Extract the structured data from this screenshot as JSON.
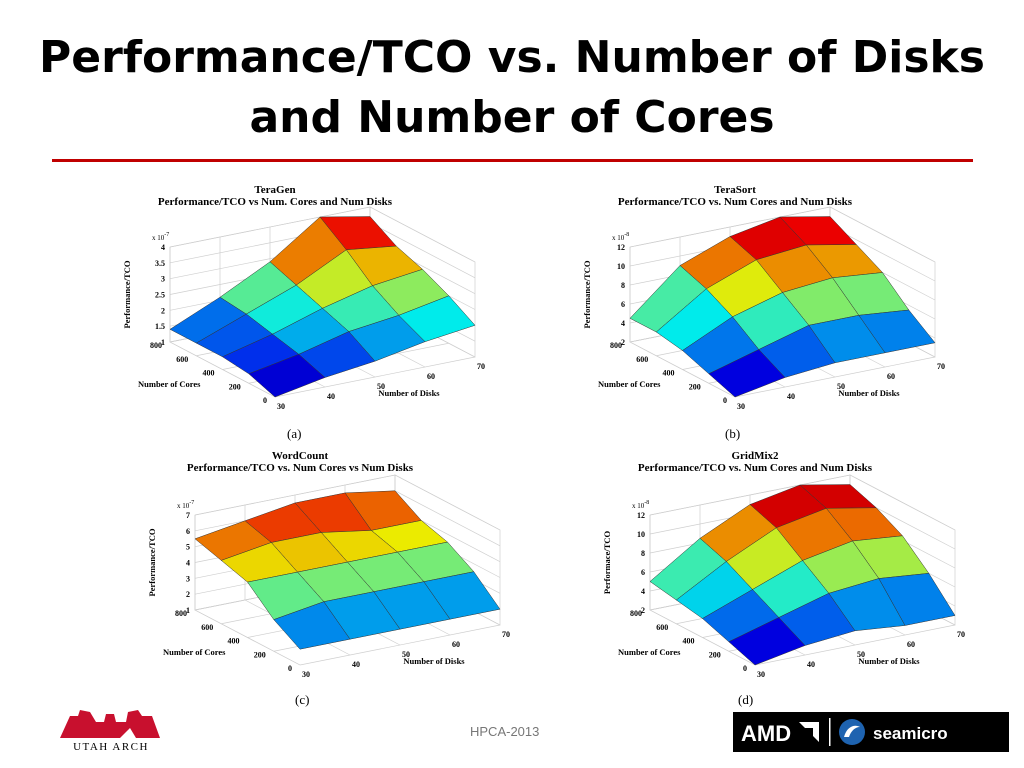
{
  "slide": {
    "title": "Performance/TCO vs. Number of Disks and Number of Cores",
    "footer": "HPCA-2013",
    "logo_left": "UTAH ARCH",
    "logo_right_amd": "AMD",
    "logo_right_seamicro": "seamicro"
  },
  "chart_data": [
    {
      "type": "surface3d",
      "subfigure": "(a)",
      "title": "TeraGen",
      "subtitle": "Performance/TCO vs Num. Cores and Num Disks",
      "xlabel": "Number of Disks",
      "ylabel": "Number of Cores",
      "zlabel": "Performance/TCO",
      "z_exponent": "x 10",
      "z_exponent_power": "-7",
      "x_ticks": [
        "30",
        "40",
        "50",
        "60",
        "70"
      ],
      "y_ticks": [
        "0",
        "200",
        "400",
        "600",
        "800"
      ],
      "z_ticks": [
        "1",
        "1.5",
        "2",
        "2.5",
        "3",
        "3.5",
        "4"
      ],
      "zlim": [
        1,
        4
      ],
      "x": [
        30,
        40,
        50,
        60,
        70
      ],
      "y": [
        0,
        200,
        400,
        600,
        800
      ],
      "z": [
        [
          1.0,
          1.3,
          1.5,
          1.8,
          2.0
        ],
        [
          1.3,
          1.6,
          2.0,
          2.2,
          2.5
        ],
        [
          1.4,
          1.8,
          2.3,
          2.7,
          2.9
        ],
        [
          1.4,
          2.0,
          2.6,
          3.4,
          3.2
        ],
        [
          1.4,
          2.1,
          2.9,
          4.0,
          3.7
        ]
      ]
    },
    {
      "type": "surface3d",
      "subfigure": "(b)",
      "title": "TeraSort",
      "subtitle": "Performance/TCO vs. Num Cores and Num Disks",
      "xlabel": "Number of Disks",
      "ylabel": "Number of Cores",
      "zlabel": "Performance/TCO",
      "z_exponent": "x 10",
      "z_exponent_power": "-8",
      "x_ticks": [
        "30",
        "40",
        "50",
        "60",
        "70"
      ],
      "y_ticks": [
        "0",
        "200",
        "400",
        "600",
        "800"
      ],
      "z_ticks": [
        "2",
        "4",
        "6",
        "8",
        "10",
        "12"
      ],
      "zlim": [
        2,
        12
      ],
      "x": [
        30,
        40,
        50,
        60,
        70
      ],
      "y": [
        0,
        200,
        400,
        600,
        800
      ],
      "z": [
        [
          2.0,
          3.0,
          3.5,
          3.5,
          3.5
        ],
        [
          3.0,
          4.5,
          6.0,
          6.0,
          5.5
        ],
        [
          4.0,
          6.5,
          8.0,
          8.5,
          8.0
        ],
        [
          4.5,
          8.0,
          10.0,
          10.5,
          9.5
        ],
        [
          4.5,
          9.0,
          11.0,
          12.0,
          11.0
        ]
      ]
    },
    {
      "type": "surface3d",
      "subfigure": "(c)",
      "title": "WordCount",
      "subtitle": "Performance/TCO vs. Num Cores vs Num Disks",
      "xlabel": "Number of Disks",
      "ylabel": "Number of Cores",
      "zlabel": "Performance/TCO",
      "z_exponent": "x 10",
      "z_exponent_power": "-7",
      "x_ticks": [
        "30",
        "40",
        "50",
        "60",
        "70"
      ],
      "y_ticks": [
        "0",
        "200",
        "400",
        "600",
        "800"
      ],
      "z_ticks": [
        "1",
        "2",
        "3",
        "4",
        "5",
        "6",
        "7"
      ],
      "zlim": [
        1,
        7
      ],
      "x": [
        30,
        40,
        50,
        60,
        70
      ],
      "y": [
        0,
        200,
        400,
        600,
        800
      ],
      "z": [
        [
          2.0,
          2.0,
          2.0,
          2.0,
          2.0
        ],
        [
          3.0,
          3.5,
          3.5,
          3.5,
          3.5
        ],
        [
          4.5,
          4.5,
          4.5,
          4.5,
          4.5
        ],
        [
          5.0,
          5.5,
          5.5,
          5.0,
          5.0
        ],
        [
          5.5,
          6.0,
          6.5,
          6.5,
          6.0
        ]
      ]
    },
    {
      "type": "surface3d",
      "subfigure": "(d)",
      "title": "GridMix2",
      "subtitle": "Performance/TCO vs. Num Cores and Num Disks",
      "xlabel": "Number of Disks",
      "ylabel": "Number of Cores",
      "zlabel": "Performace/TCO",
      "z_exponent": "x 10",
      "z_exponent_power": "-8",
      "x_ticks": [
        "30",
        "40",
        "50",
        "60",
        "70"
      ],
      "y_ticks": [
        "0",
        "200",
        "400",
        "600",
        "800"
      ],
      "z_ticks": [
        "2",
        "4",
        "6",
        "8",
        "10",
        "12"
      ],
      "zlim": [
        2,
        12
      ],
      "x": [
        30,
        40,
        50,
        60,
        70
      ],
      "y": [
        0,
        200,
        400,
        600,
        800
      ],
      "z": [
        [
          2.0,
          3.0,
          3.5,
          3.0,
          3.0
        ],
        [
          3.0,
          4.5,
          6.0,
          6.5,
          6.0
        ],
        [
          4.0,
          6.0,
          8.0,
          9.0,
          8.5
        ],
        [
          4.5,
          7.5,
          10.0,
          11.0,
          10.0
        ],
        [
          5.0,
          8.5,
          11.0,
          12.0,
          11.0
        ]
      ]
    }
  ]
}
